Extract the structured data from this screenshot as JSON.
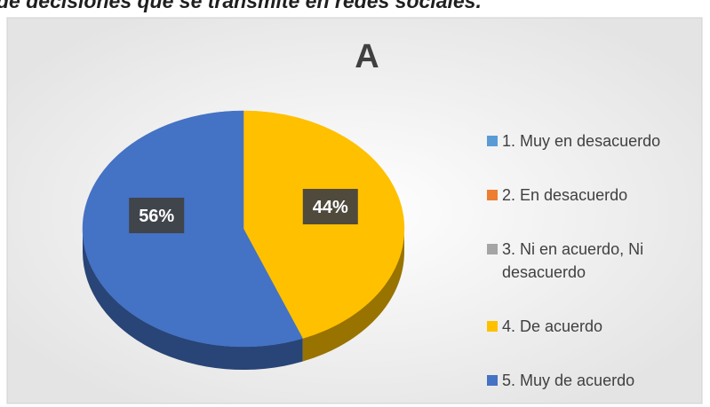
{
  "heading": "de decisiones que se transmite en redes sociales.",
  "chart_data": {
    "type": "pie",
    "title": "A",
    "categories": [
      "1. Muy en desacuerdo",
      "2. En desacuerdo",
      "3. Ni en acuerdo, Ni desacuerdo",
      "4. De acuerdo",
      "5. Muy de acuerdo"
    ],
    "values": [
      0,
      0,
      0,
      44,
      56
    ],
    "value_labels": [
      null,
      null,
      null,
      "44%",
      "56%"
    ],
    "colors": [
      "#5b9bd5",
      "#ed7d31",
      "#a5a5a5",
      "#ffc000",
      "#4472c4"
    ],
    "legend": "right"
  }
}
